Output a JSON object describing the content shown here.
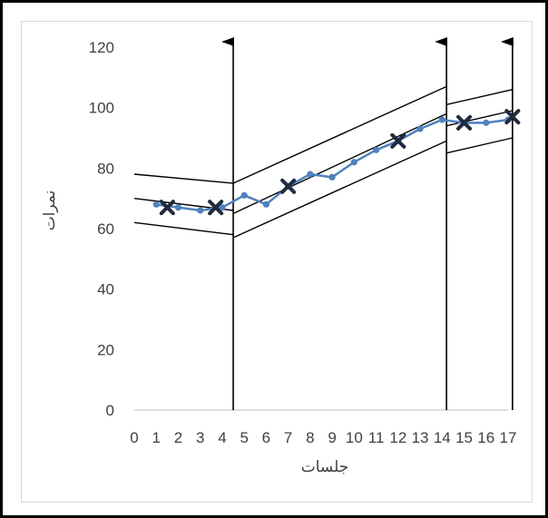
{
  "chart_data": {
    "type": "line",
    "title": "",
    "xlabel": "جلسات",
    "ylabel": "نمرات",
    "ylim": [
      0,
      120
    ],
    "xlim": [
      0,
      17
    ],
    "yticks": [
      "0",
      "20",
      "40",
      "60",
      "80",
      "100",
      "120"
    ],
    "xticks": [
      "0",
      "1",
      "2",
      "3",
      "4",
      "5",
      "6",
      "7",
      "8",
      "9",
      "10",
      "11",
      "12",
      "13",
      "14",
      "15",
      "16",
      "17"
    ],
    "grid": false,
    "legend": "none",
    "series": [
      {
        "x": [
          1,
          2,
          3,
          4,
          5,
          6,
          7,
          8,
          9,
          10,
          11,
          12,
          13,
          14,
          15,
          16,
          17
        ],
        "y": [
          68,
          67,
          66,
          67,
          71,
          68,
          74,
          78,
          77,
          82,
          86,
          89,
          93,
          96,
          95,
          95,
          96
        ],
        "color": "#4f81bd"
      }
    ],
    "markers": [
      {
        "x": 1.5,
        "y": 67
      },
      {
        "x": 3.7,
        "y": 67
      },
      {
        "x": 7,
        "y": 74
      },
      {
        "x": 12,
        "y": 89
      },
      {
        "x": 15,
        "y": 95
      },
      {
        "x": 17.2,
        "y": 97
      }
    ],
    "phase_lines": [
      4.5,
      14.2,
      17.2
    ],
    "trend_segments": [
      {
        "x": [
          0,
          4.5
        ],
        "upper": [
          78,
          75
        ],
        "mid": [
          70,
          66
        ],
        "lower": [
          62,
          58
        ]
      },
      {
        "x": [
          4.5,
          14.2
        ],
        "upper": [
          75,
          107
        ],
        "mid": [
          65,
          98
        ],
        "lower": [
          57,
          89
        ]
      },
      {
        "x": [
          14.2,
          17.2
        ],
        "upper": [
          101,
          106
        ],
        "mid": [
          94,
          99
        ],
        "lower": [
          85,
          90
        ]
      }
    ],
    "colors": {
      "series": "#4f81bd",
      "annotations": "#000000",
      "marker": "#1f2a3c",
      "axis": "#bfbfbf"
    }
  }
}
